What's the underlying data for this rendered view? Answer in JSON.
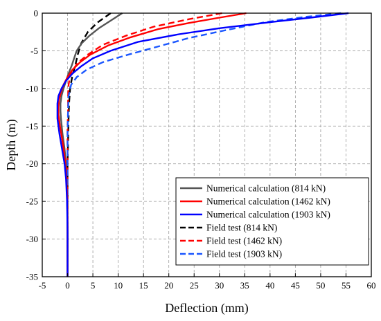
{
  "chart_data": {
    "type": "line",
    "xlabel": "Deflection (mm)",
    "ylabel": "Depth (m)",
    "xlim": [
      -5,
      60
    ],
    "ylim": [
      -35,
      0
    ],
    "xticks": [
      -5,
      0,
      5,
      10,
      15,
      20,
      25,
      30,
      35,
      40,
      45,
      50,
      55,
      60
    ],
    "yticks": [
      0,
      -5,
      -10,
      -15,
      -20,
      -25,
      -30,
      -35
    ],
    "grid": true,
    "legend_position": "lower-right",
    "series": [
      {
        "name": "Numerical calculation (814 kN)",
        "color": "#555555",
        "dash": "solid",
        "points": [
          [
            10.8,
            0
          ],
          [
            8.5,
            -1
          ],
          [
            6.2,
            -2
          ],
          [
            4.3,
            -3
          ],
          [
            2.8,
            -4
          ],
          [
            1.8,
            -5
          ],
          [
            1.3,
            -6
          ],
          [
            0.8,
            -7
          ],
          [
            0.2,
            -8
          ],
          [
            -0.3,
            -9
          ],
          [
            -0.8,
            -10
          ],
          [
            -1.2,
            -11
          ],
          [
            -1.4,
            -12
          ],
          [
            -1.4,
            -13
          ],
          [
            -1.3,
            -14
          ],
          [
            -1.0,
            -16
          ],
          [
            -0.6,
            -18
          ],
          [
            -0.3,
            -20
          ],
          [
            -0.15,
            -23
          ],
          [
            -0.05,
            -26
          ],
          [
            0,
            -30
          ],
          [
            0,
            -35
          ]
        ]
      },
      {
        "name": "Numerical calculation (1462 kN)",
        "color": "#ff0000",
        "dash": "solid",
        "points": [
          [
            35.3,
            0
          ],
          [
            30,
            -0.6
          ],
          [
            24,
            -1.3
          ],
          [
            18,
            -2.1
          ],
          [
            12.5,
            -3.2
          ],
          [
            8,
            -4.3
          ],
          [
            4.5,
            -5.5
          ],
          [
            2.5,
            -6.5
          ],
          [
            1.0,
            -7.5
          ],
          [
            0,
            -8.5
          ],
          [
            -0.8,
            -9.5
          ],
          [
            -1.3,
            -10.5
          ],
          [
            -1.7,
            -11.5
          ],
          [
            -1.8,
            -12.5
          ],
          [
            -1.8,
            -13.5
          ],
          [
            -1.5,
            -15
          ],
          [
            -1.0,
            -17
          ],
          [
            -0.6,
            -19
          ],
          [
            -0.3,
            -21
          ],
          [
            -0.1,
            -24
          ],
          [
            0,
            -28
          ],
          [
            0,
            -35
          ]
        ]
      },
      {
        "name": "Numerical calculation (1903 kN)",
        "color": "#0000ff",
        "dash": "solid",
        "points": [
          [
            55.5,
            0
          ],
          [
            48,
            -0.6
          ],
          [
            40,
            -1.2
          ],
          [
            30,
            -2.0
          ],
          [
            22,
            -2.8
          ],
          [
            14,
            -3.8
          ],
          [
            8.5,
            -5.0
          ],
          [
            5,
            -6.0
          ],
          [
            2.8,
            -7.0
          ],
          [
            1.0,
            -8.0
          ],
          [
            -0.3,
            -9.0
          ],
          [
            -1.2,
            -10
          ],
          [
            -1.8,
            -11
          ],
          [
            -2.0,
            -12
          ],
          [
            -2.0,
            -13
          ],
          [
            -2.0,
            -14
          ],
          [
            -1.6,
            -16
          ],
          [
            -1.1,
            -18
          ],
          [
            -0.6,
            -20
          ],
          [
            -0.3,
            -22
          ],
          [
            -0.1,
            -25
          ],
          [
            0,
            -29
          ],
          [
            0,
            -35
          ]
        ]
      },
      {
        "name": "Field test (814 kN)",
        "color": "#000000",
        "dash": "dashed",
        "points": [
          [
            8.5,
            0
          ],
          [
            6,
            -1.2
          ],
          [
            4,
            -2.5
          ],
          [
            2.7,
            -4
          ],
          [
            2,
            -5.5
          ],
          [
            1.5,
            -7
          ],
          [
            0.9,
            -8.5
          ],
          [
            0.5,
            -10
          ],
          [
            0.3,
            -12
          ],
          [
            0.2,
            -14
          ],
          [
            0.1,
            -17
          ],
          [
            0,
            -20
          ],
          [
            0,
            -25
          ],
          [
            0,
            -30
          ],
          [
            0,
            -35
          ]
        ]
      },
      {
        "name": "Field test (1462 kN)",
        "color": "#ff0000",
        "dash": "dashed",
        "points": [
          [
            30.5,
            0
          ],
          [
            24,
            -0.8
          ],
          [
            17,
            -1.8
          ],
          [
            11.5,
            -3
          ],
          [
            7,
            -4.2
          ],
          [
            4,
            -5.5
          ],
          [
            2,
            -6.6
          ],
          [
            0.6,
            -8
          ],
          [
            0.2,
            -9.5
          ],
          [
            0.1,
            -11
          ],
          [
            0.1,
            -13
          ],
          [
            0,
            -15
          ],
          [
            0,
            -18
          ],
          [
            0,
            -22
          ],
          [
            0,
            -28
          ],
          [
            0,
            -35
          ]
        ]
      },
      {
        "name": "Field test (1903 kN)",
        "color": "#1a56ff",
        "dash": "dashed",
        "points": [
          [
            54,
            0
          ],
          [
            47,
            -0.5
          ],
          [
            39,
            -1.2
          ],
          [
            31,
            -2.3
          ],
          [
            24,
            -3.3
          ],
          [
            17.5,
            -4.5
          ],
          [
            11.5,
            -5.6
          ],
          [
            7,
            -6.5
          ],
          [
            3.8,
            -7.5
          ],
          [
            1.8,
            -8.5
          ],
          [
            0.7,
            -9.5
          ],
          [
            0.2,
            -11
          ],
          [
            0.1,
            -13
          ],
          [
            0,
            -16
          ],
          [
            0,
            -20
          ],
          [
            0,
            -25
          ],
          [
            0,
            -30
          ],
          [
            0,
            -35
          ]
        ]
      }
    ]
  }
}
